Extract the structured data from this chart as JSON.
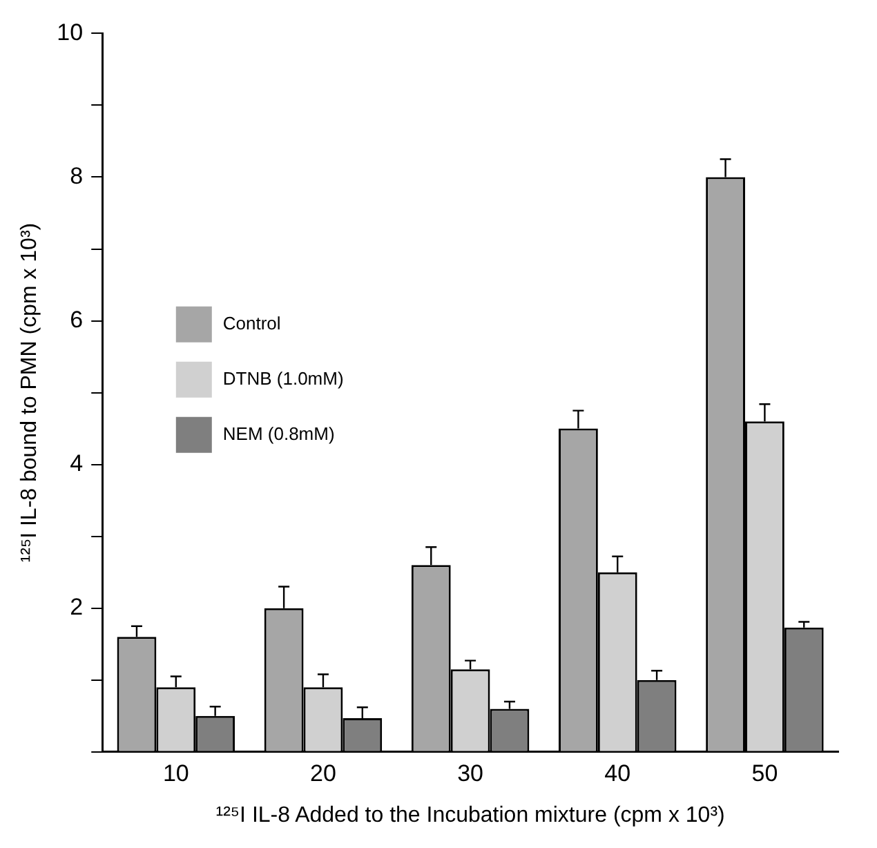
{
  "chart_data": {
    "type": "bar",
    "xlabel": "¹²⁵I IL-8 Added to the Incubation mixture (cpm x 10³)",
    "ylabel": "¹²⁵I IL-8 bound to PMN (cpm x 10³)",
    "categories": [
      "10",
      "20",
      "30",
      "40",
      "50"
    ],
    "series": [
      {
        "name": "Control",
        "color": "#a6a6a6",
        "values": [
          1.6,
          2.0,
          2.6,
          4.5,
          8.0
        ],
        "errors": [
          [
            1.6,
            1.75
          ],
          [
            2.0,
            2.3
          ],
          [
            2.6,
            2.85
          ],
          [
            4.5,
            4.75
          ],
          [
            8.0,
            8.25
          ]
        ]
      },
      {
        "name": "DTNB (1.0mM)",
        "color": "#d0d0d0",
        "values": [
          0.9,
          0.9,
          1.15,
          2.5,
          4.6
        ],
        "errors": [
          [
            0.9,
            1.05
          ],
          [
            0.9,
            1.08
          ],
          [
            1.15,
            1.27
          ],
          [
            2.5,
            2.72
          ],
          [
            4.6,
            4.84
          ]
        ]
      },
      {
        "name": "NEM (0.8mM)",
        "color": "#7f7f7f",
        "values": [
          0.5,
          0.47,
          0.6,
          1.0,
          1.73
        ],
        "errors": [
          [
            0.5,
            0.63
          ],
          [
            0.47,
            0.62
          ],
          [
            0.6,
            0.7
          ],
          [
            1.0,
            1.13
          ],
          [
            1.73,
            1.81
          ]
        ]
      }
    ],
    "ylim": [
      0,
      10
    ],
    "yticks": [
      {
        "value": 0,
        "label": null
      },
      {
        "value": 1,
        "label": null
      },
      2,
      {
        "value": 3,
        "label": null
      },
      4,
      {
        "value": 5,
        "label": null
      },
      6,
      {
        "value": 7,
        "label": null
      },
      8,
      {
        "value": 9,
        "label": null
      },
      10
    ],
    "grid": false,
    "legend": "left"
  }
}
